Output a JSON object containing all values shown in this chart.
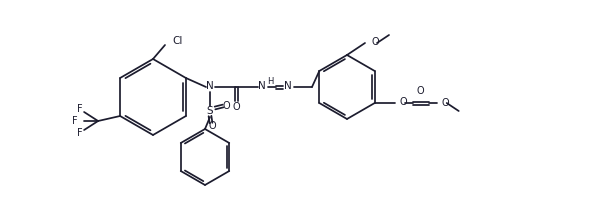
{
  "bg": "#ffffff",
  "lc": "#1c1c2e",
  "lw": 1.25,
  "figsize": [
    6.02,
    2.12
  ],
  "dpi": 100,
  "xlim": [
    0,
    602
  ],
  "ylim": [
    0,
    212
  ]
}
